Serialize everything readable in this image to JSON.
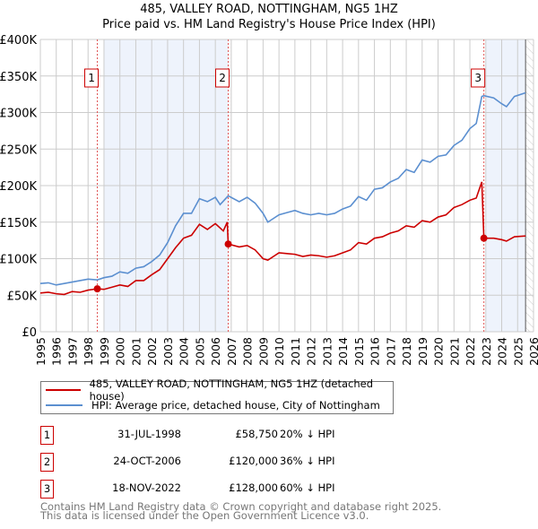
{
  "title": "485, VALLEY ROAD, NOTTINGHAM, NG5 1HZ",
  "subtitle": "Price paid vs. HM Land Registry's House Price Index (HPI)",
  "chart_data": {
    "type": "line",
    "xlim": [
      1995,
      2026
    ],
    "ylim": [
      0,
      400000
    ],
    "yticks": [
      {
        "v": 0,
        "label": "£0"
      },
      {
        "v": 50000,
        "label": "£50K"
      },
      {
        "v": 100000,
        "label": "£100K"
      },
      {
        "v": 150000,
        "label": "£150K"
      },
      {
        "v": 200000,
        "label": "£200K"
      },
      {
        "v": 250000,
        "label": "£250K"
      },
      {
        "v": 300000,
        "label": "£300K"
      },
      {
        "v": 350000,
        "label": "£350K"
      },
      {
        "v": 400000,
        "label": "£400K"
      }
    ],
    "xticks": [
      "1995",
      "1996",
      "1997",
      "1998",
      "1999",
      "2000",
      "2001",
      "2002",
      "2003",
      "2004",
      "2005",
      "2006",
      "2007",
      "2008",
      "2009",
      "2010",
      "2011",
      "2012",
      "2013",
      "2014",
      "2015",
      "2016",
      "2017",
      "2018",
      "2019",
      "2020",
      "2021",
      "2022",
      "2023",
      "2024",
      "2025",
      "2026"
    ],
    "grid": true,
    "series": [
      {
        "name": "485, VALLEY ROAD, NOTTINGHAM, NG5 1HZ (detached house)",
        "color": "#cc0000",
        "x": [
          1995,
          1995.5,
          1996,
          1996.5,
          1997,
          1997.5,
          1998,
          1998.58,
          1999,
          2000,
          2000.5,
          2001,
          2001.5,
          2002,
          2002.5,
          2003,
          2003.5,
          2004,
          2004.5,
          2005,
          2005.5,
          2006,
          2006.5,
          2006.75,
          2006.81,
          2007.5,
          2008,
          2008.5,
          2009,
          2009.3,
          2010,
          2010.5,
          2011,
          2011.5,
          2012,
          2012.5,
          2013,
          2013.5,
          2014,
          2014.5,
          2015,
          2015.5,
          2016,
          2016.5,
          2017,
          2017.5,
          2018,
          2018.5,
          2019,
          2019.5,
          2020,
          2020.5,
          2021,
          2021.5,
          2022,
          2022.4,
          2022.75,
          2022.88,
          2023.5,
          2024,
          2024.3,
          2024.8,
          2025.5
        ],
        "y": [
          53000,
          54000,
          52000,
          51000,
          55000,
          54000,
          57000,
          58750,
          58000,
          64000,
          62000,
          70000,
          70000,
          78000,
          85000,
          100000,
          115000,
          128000,
          132000,
          147000,
          140000,
          148000,
          138000,
          150000,
          120000,
          116000,
          118000,
          112000,
          100000,
          98000,
          108000,
          107000,
          106000,
          103000,
          105000,
          104000,
          102000,
          104000,
          108000,
          112000,
          122000,
          120000,
          128000,
          130000,
          135000,
          138000,
          145000,
          143000,
          152000,
          150000,
          157000,
          160000,
          170000,
          174000,
          180000,
          183000,
          205000,
          128000,
          128000,
          126000,
          124000,
          130000,
          131000
        ]
      },
      {
        "name": "HPI: Average price, detached house, City of Nottingham",
        "color": "#5b8fd0",
        "x": [
          1995,
          1995.5,
          1996,
          1996.5,
          1997,
          1997.5,
          1998,
          1998.58,
          1999,
          1999.5,
          2000,
          2000.5,
          2001,
          2001.5,
          2002,
          2002.5,
          2003,
          2003.5,
          2004,
          2004.5,
          2005,
          2005.5,
          2006,
          2006.3,
          2006.81,
          2007.5,
          2008,
          2008.5,
          2009,
          2009.3,
          2010,
          2010.5,
          2011,
          2011.5,
          2012,
          2012.5,
          2013,
          2013.5,
          2014,
          2014.5,
          2015,
          2015.5,
          2016,
          2016.5,
          2017,
          2017.5,
          2018,
          2018.5,
          2019,
          2019.5,
          2020,
          2020.5,
          2021,
          2021.5,
          2022,
          2022.4,
          2022.75,
          2022.88,
          2023.5,
          2024,
          2024.3,
          2024.8,
          2025.5
        ],
        "y": [
          66000,
          67000,
          64000,
          66000,
          68000,
          70000,
          72000,
          71000,
          74000,
          76000,
          82000,
          80000,
          87000,
          89000,
          96000,
          105000,
          122000,
          145000,
          162000,
          162000,
          182000,
          178000,
          184000,
          174000,
          186000,
          178000,
          184000,
          176000,
          162000,
          150000,
          160000,
          163000,
          166000,
          162000,
          160000,
          162000,
          160000,
          162000,
          168000,
          172000,
          185000,
          180000,
          195000,
          197000,
          205000,
          210000,
          222000,
          218000,
          235000,
          232000,
          240000,
          242000,
          255000,
          262000,
          278000,
          285000,
          322000,
          323000,
          320000,
          312000,
          308000,
          322000,
          327000
        ]
      }
    ],
    "sales": [
      {
        "n": "1",
        "x": 1998.58,
        "y": 58750,
        "date": "31-JUL-1998",
        "price": "£58,750",
        "hpi": "20% ↓ HPI"
      },
      {
        "n": "2",
        "x": 2006.81,
        "y": 120000,
        "date": "24-OCT-2006",
        "price": "£120,000",
        "hpi": "36% ↓ HPI"
      },
      {
        "n": "3",
        "x": 2022.88,
        "y": 128000,
        "date": "18-NOV-2022",
        "price": "£128,000",
        "hpi": "60% ↓ HPI"
      }
    ],
    "shaded": [
      [
        1999,
        2006.81
      ],
      [
        2023,
        2025.5
      ]
    ],
    "forecast_start": 2025.5
  },
  "footer": [
    "Contains HM Land Registry data © Crown copyright and database right 2025.",
    "This data is licensed under the Open Government Licence v3.0."
  ]
}
